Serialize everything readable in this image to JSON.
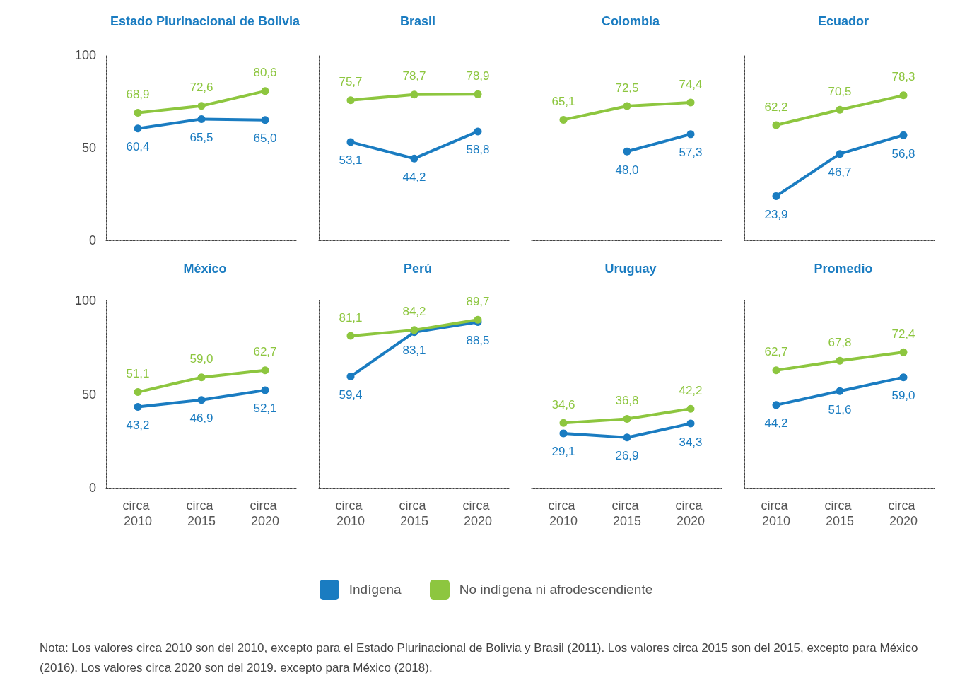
{
  "chart_data": [
    {
      "type": "line",
      "title": "Estado Plurinacional de Bolivia",
      "categories": [
        "circa 2010",
        "circa 2015",
        "circa 2020"
      ],
      "ylim": [
        0,
        100
      ],
      "yticks": [
        0,
        50,
        100
      ],
      "tick_labels": "y",
      "grid": false,
      "marker": "circle",
      "legend": "bottom",
      "series": [
        {
          "name": "Indígena",
          "color": "#1a7cc1",
          "values": [
            60.4,
            65.5,
            65.0
          ],
          "value_labels": [
            "60,4",
            "65,5",
            "65,0"
          ]
        },
        {
          "name": "No indígena ni afrodescendiente",
          "color": "#8dc63f",
          "values": [
            68.9,
            72.6,
            80.6
          ],
          "value_labels": [
            "68,9",
            "72,6",
            "80,6"
          ]
        }
      ]
    },
    {
      "type": "line",
      "title": "Brasil",
      "categories": [
        "circa 2010",
        "circa 2015",
        "circa 2020"
      ],
      "ylim": [
        0,
        100
      ],
      "yticks": [
        0,
        50,
        100
      ],
      "tick_labels": false,
      "grid": false,
      "marker": "circle",
      "series": [
        {
          "color": "#1a7cc1",
          "values": [
            53.1,
            44.2,
            58.8
          ],
          "value_labels": [
            "53,1",
            "44,2",
            "58,8"
          ]
        },
        {
          "color": "#8dc63f",
          "values": [
            75.7,
            78.7,
            78.9
          ],
          "value_labels": [
            "75,7",
            "78,7",
            "78,9"
          ]
        }
      ]
    },
    {
      "type": "line",
      "title": "Colombia",
      "categories": [
        "circa 2010",
        "circa 2015",
        "circa 2020"
      ],
      "ylim": [
        0,
        100
      ],
      "yticks": [
        0,
        50,
        100
      ],
      "tick_labels": false,
      "grid": false,
      "marker": "circle",
      "series": [
        {
          "color": "#1a7cc1",
          "values": [
            null,
            48.0,
            57.3
          ],
          "value_labels": [
            null,
            "48,0",
            "57,3"
          ]
        },
        {
          "color": "#8dc63f",
          "values": [
            65.1,
            72.5,
            74.4
          ],
          "value_labels": [
            "65,1",
            "72,5",
            "74,4"
          ]
        }
      ]
    },
    {
      "type": "line",
      "title": "Ecuador",
      "categories": [
        "circa 2010",
        "circa 2015",
        "circa 2020"
      ],
      "ylim": [
        0,
        100
      ],
      "yticks": [
        0,
        50,
        100
      ],
      "tick_labels": false,
      "grid": false,
      "marker": "circle",
      "series": [
        {
          "color": "#1a7cc1",
          "values": [
            23.9,
            46.7,
            56.8
          ],
          "value_labels": [
            "23,9",
            "46,7",
            "56,8"
          ]
        },
        {
          "color": "#8dc63f",
          "values": [
            62.2,
            70.5,
            78.3
          ],
          "value_labels": [
            "62,2",
            "70,5",
            "78,3"
          ]
        }
      ]
    },
    {
      "type": "line",
      "title": "México",
      "categories": [
        "circa 2010",
        "circa 2015",
        "circa 2020"
      ],
      "ylim": [
        0,
        100
      ],
      "yticks": [
        0,
        50,
        100
      ],
      "grid": false,
      "marker": "circle",
      "series": [
        {
          "color": "#1a7cc1",
          "values": [
            43.2,
            46.9,
            52.1
          ],
          "value_labels": [
            "43,2",
            "46,9",
            "52,1"
          ]
        },
        {
          "color": "#8dc63f",
          "values": [
            51.1,
            59.0,
            62.7
          ],
          "value_labels": [
            "51,1",
            "59,0",
            "62,7"
          ]
        }
      ]
    },
    {
      "type": "line",
      "title": "Perú",
      "categories": [
        "circa 2010",
        "circa 2015",
        "circa 2020"
      ],
      "ylim": [
        0,
        100
      ],
      "yticks": [
        0,
        50,
        100
      ],
      "tick_labels": "x",
      "grid": false,
      "marker": "circle",
      "series": [
        {
          "color": "#1a7cc1",
          "values": [
            59.4,
            83.1,
            88.5
          ],
          "value_labels": [
            "59,4",
            "83,1",
            "88,5"
          ]
        },
        {
          "color": "#8dc63f",
          "values": [
            81.1,
            84.2,
            89.7
          ],
          "value_labels": [
            "81,1",
            "84,2",
            "89,7"
          ]
        }
      ]
    },
    {
      "type": "line",
      "title": "Uruguay",
      "categories": [
        "circa 2010",
        "circa 2015",
        "circa 2020"
      ],
      "ylim": [
        0,
        100
      ],
      "yticks": [
        0,
        50,
        100
      ],
      "tick_labels": "x",
      "grid": false,
      "marker": "circle",
      "series": [
        {
          "color": "#1a7cc1",
          "values": [
            29.1,
            26.9,
            34.3
          ],
          "value_labels": [
            "29,1",
            "26,9",
            "34,3"
          ]
        },
        {
          "color": "#8dc63f",
          "values": [
            34.6,
            36.8,
            42.2
          ],
          "value_labels": [
            "34,6",
            "36,8",
            "42,2"
          ]
        }
      ]
    },
    {
      "type": "line",
      "title": "Promedio",
      "categories": [
        "circa 2010",
        "circa 2015",
        "circa 2020"
      ],
      "ylim": [
        0,
        100
      ],
      "yticks": [
        0,
        50,
        100
      ],
      "tick_labels": "x",
      "grid": false,
      "marker": "circle",
      "annotations": [
        "Nota: Los valores circa 2010 son del 2010, excepto para el Estado Plurinacional de Bolivia y Brasil (2011). Los valores circa 2015 son del 2015, excepto para México (2016). Los valores circa 2020 son del 2019. excepto para México (2018)."
      ],
      "series": [
        {
          "color": "#1a7cc1",
          "values": [
            44.2,
            51.6,
            59.0
          ],
          "value_labels": [
            "44,2",
            "51,6",
            "59,0"
          ]
        },
        {
          "color": "#8dc63f",
          "values": [
            62.7,
            67.8,
            72.4
          ],
          "value_labels": [
            "62,7",
            "67,8",
            "72,4"
          ]
        }
      ]
    }
  ]
}
